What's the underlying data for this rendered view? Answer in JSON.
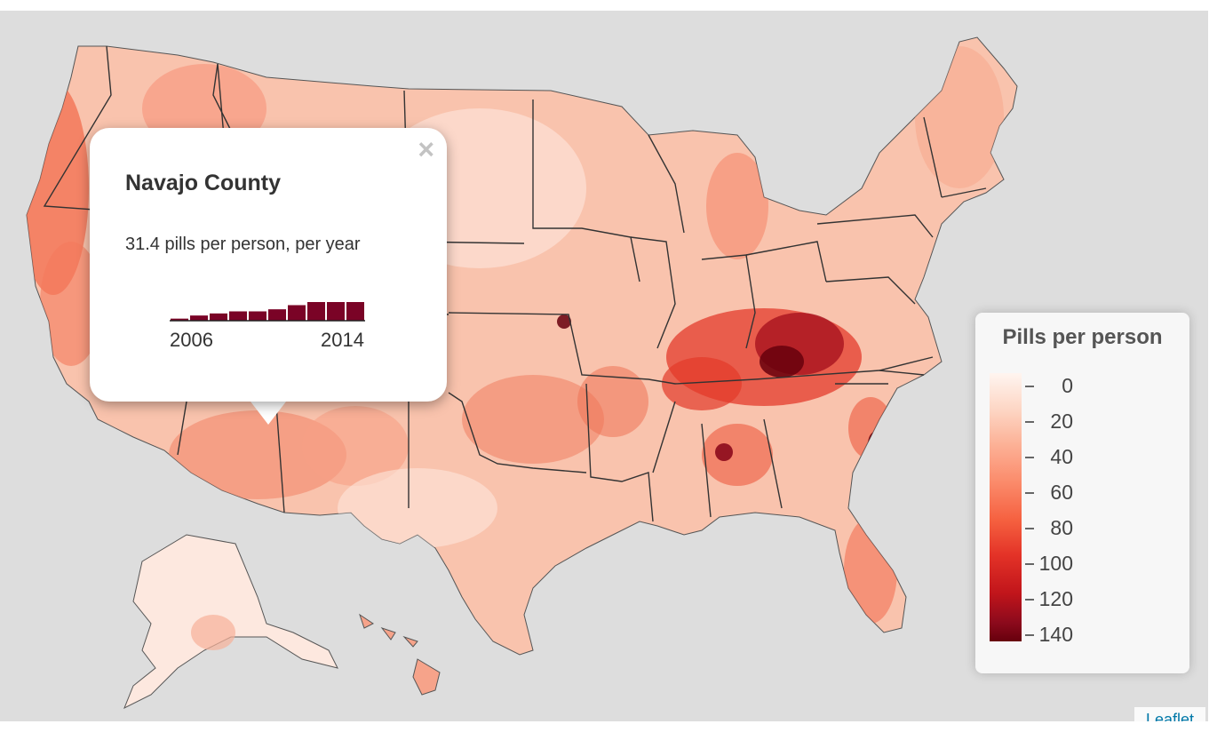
{
  "popup": {
    "title": "Navajo County",
    "text": "31.4 pills per person, per year",
    "close_label": "×",
    "sparkline": {
      "start_label": "2006",
      "end_label": "2014",
      "values": [
        2,
        5,
        7,
        9,
        9,
        11,
        15,
        18,
        18,
        18
      ],
      "color": "#7a0326"
    }
  },
  "legend": {
    "title": "Pills per person",
    "ticks": [
      "0",
      "20",
      "40",
      "60",
      "80",
      "100",
      "120",
      "140"
    ]
  },
  "attribution": {
    "label": "Leaflet"
  },
  "colors": {
    "ocean": "#dddddd",
    "state_border": "#333333",
    "low": "#fff5f0",
    "high": "#67000d"
  }
}
